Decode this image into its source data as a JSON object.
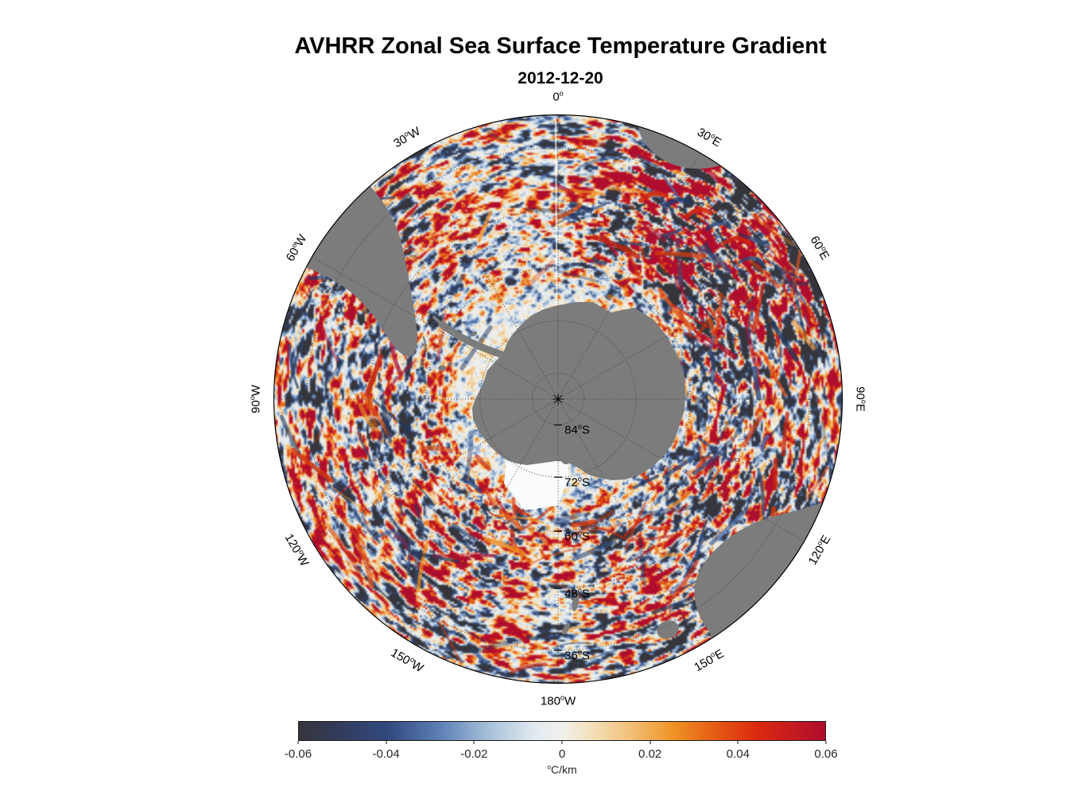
{
  "title": "AVHRR Zonal Sea Surface Temperature Gradient",
  "subtitle": "2012-12-20",
  "colorbar": {
    "ticks": [
      "-0.06",
      "-0.04",
      "-0.02",
      "0",
      "0.02",
      "0.04",
      "0.06"
    ],
    "unit_sup": "o",
    "unit_text": "C/km"
  },
  "chart_data": {
    "type": "heatmap",
    "title": "AVHRR Zonal Sea Surface Temperature Gradient",
    "date": "2012-12-20",
    "projection": "south polar stereographic",
    "variable": "zonal sea surface temperature gradient",
    "units": "°C/km",
    "value_range": [
      -0.06,
      0.06
    ],
    "colorbar_ticks": [
      -0.06,
      -0.04,
      -0.02,
      0,
      0.02,
      0.04,
      0.06
    ],
    "colormap_stops": [
      [
        0.0,
        "#35353b"
      ],
      [
        0.08,
        "#333c5e"
      ],
      [
        0.17,
        "#31497e"
      ],
      [
        0.27,
        "#5f82b6"
      ],
      [
        0.36,
        "#a6c0da"
      ],
      [
        0.45,
        "#e2eaf0"
      ],
      [
        0.5,
        "#f0f0ec"
      ],
      [
        0.55,
        "#f3e2c0"
      ],
      [
        0.63,
        "#f2c078"
      ],
      [
        0.71,
        "#ee9426"
      ],
      [
        0.79,
        "#e55c14"
      ],
      [
        0.87,
        "#dc2a10"
      ],
      [
        1.0,
        "#b00d2e"
      ]
    ],
    "longitude_labels": [
      {
        "value": "0",
        "hemi": "",
        "az": 0
      },
      {
        "value": "30",
        "hemi": "E",
        "az": 30
      },
      {
        "value": "60",
        "hemi": "E",
        "az": 60
      },
      {
        "value": "90",
        "hemi": "E",
        "az": 90
      },
      {
        "value": "120",
        "hemi": "E",
        "az": 120
      },
      {
        "value": "150",
        "hemi": "E",
        "az": 150
      },
      {
        "value": "180",
        "hemi": "W",
        "az": 180
      },
      {
        "value": "150",
        "hemi": "W",
        "az": 210
      },
      {
        "value": "120",
        "hemi": "W",
        "az": 240
      },
      {
        "value": "90",
        "hemi": "W",
        "az": 270
      },
      {
        "value": "60",
        "hemi": "W",
        "az": 300
      },
      {
        "value": "30",
        "hemi": "W",
        "az": 330
      }
    ],
    "latitude_labels": [
      {
        "value": "84",
        "hemi": "S",
        "lat": 84
      },
      {
        "value": "72",
        "hemi": "S",
        "lat": 72
      },
      {
        "value": "60",
        "hemi": "S",
        "lat": 60
      },
      {
        "value": "48",
        "hemi": "S",
        "lat": 48
      },
      {
        "value": "36",
        "hemi": "S",
        "lat": 36
      }
    ],
    "grid": {
      "lat_circles": [
        84,
        72,
        60,
        48,
        36
      ],
      "lon_lines_every_deg": 30,
      "outer_lat": 30
    },
    "land_color": "#7c7c7c",
    "ocean_color": "#eef1f1"
  }
}
